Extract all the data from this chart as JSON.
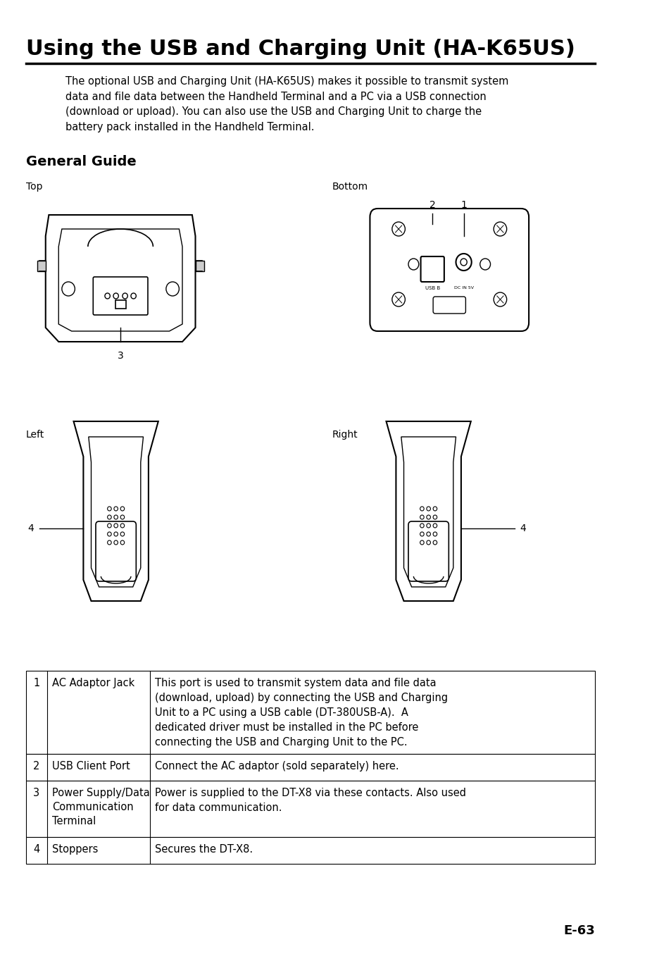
{
  "title": "Using the USB and Charging Unit (HA-K65US)",
  "background_color": "#ffffff",
  "page_number": "E-63",
  "intro_text": "The optional USB and Charging Unit (HA-K65US) makes it possible to transmit system\ndata and file data between the Handheld Terminal and a PC via a USB connection\n(download or upload). You can also use the USB and Charging Unit to charge the\nbattery pack installed in the Handheld Terminal.",
  "section_title": "General Guide",
  "table_rows": [
    {
      "num": "1",
      "name": "AC Adaptor Jack",
      "desc": "This port is used to transmit system data and file data\n(download, upload) by connecting the USB and Charging\nUnit to a PC using a USB cable (DT-380USB-A).  A\ndedicated driver must be installed in the PC before\nconnecting the USB and Charging Unit to the PC."
    },
    {
      "num": "2",
      "name": "USB Client Port",
      "desc": "Connect the AC adaptor (sold separately) here."
    },
    {
      "num": "3",
      "name": "Power Supply/Data\nCommunication\nTerminal",
      "desc": "Power is supplied to the DT-X8 via these contacts. Also used\nfor data communication."
    },
    {
      "num": "4",
      "name": "Stoppers",
      "desc": "Secures the DT-X8."
    }
  ]
}
